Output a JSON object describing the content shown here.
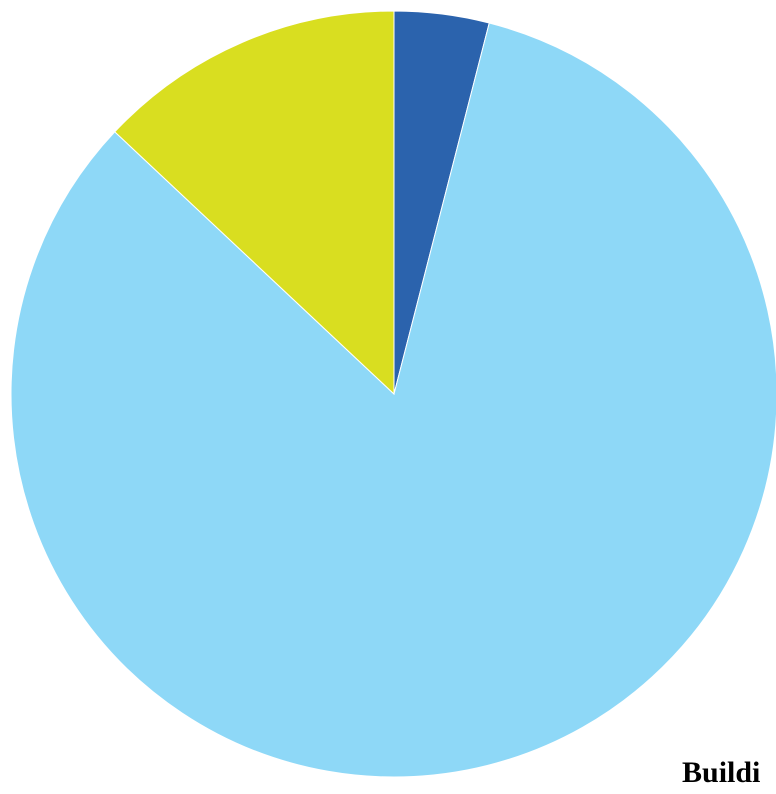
{
  "chart_data": {
    "type": "pie",
    "slices": [
      {
        "value": 4,
        "color": "#2b63ad"
      },
      {
        "value": 83,
        "color": "#8ed8f7"
      },
      {
        "value": 13,
        "color": "#d9de20"
      }
    ],
    "start_angle_deg": 0,
    "direction": "clockwise",
    "legend_label_partial": "Buildi"
  }
}
